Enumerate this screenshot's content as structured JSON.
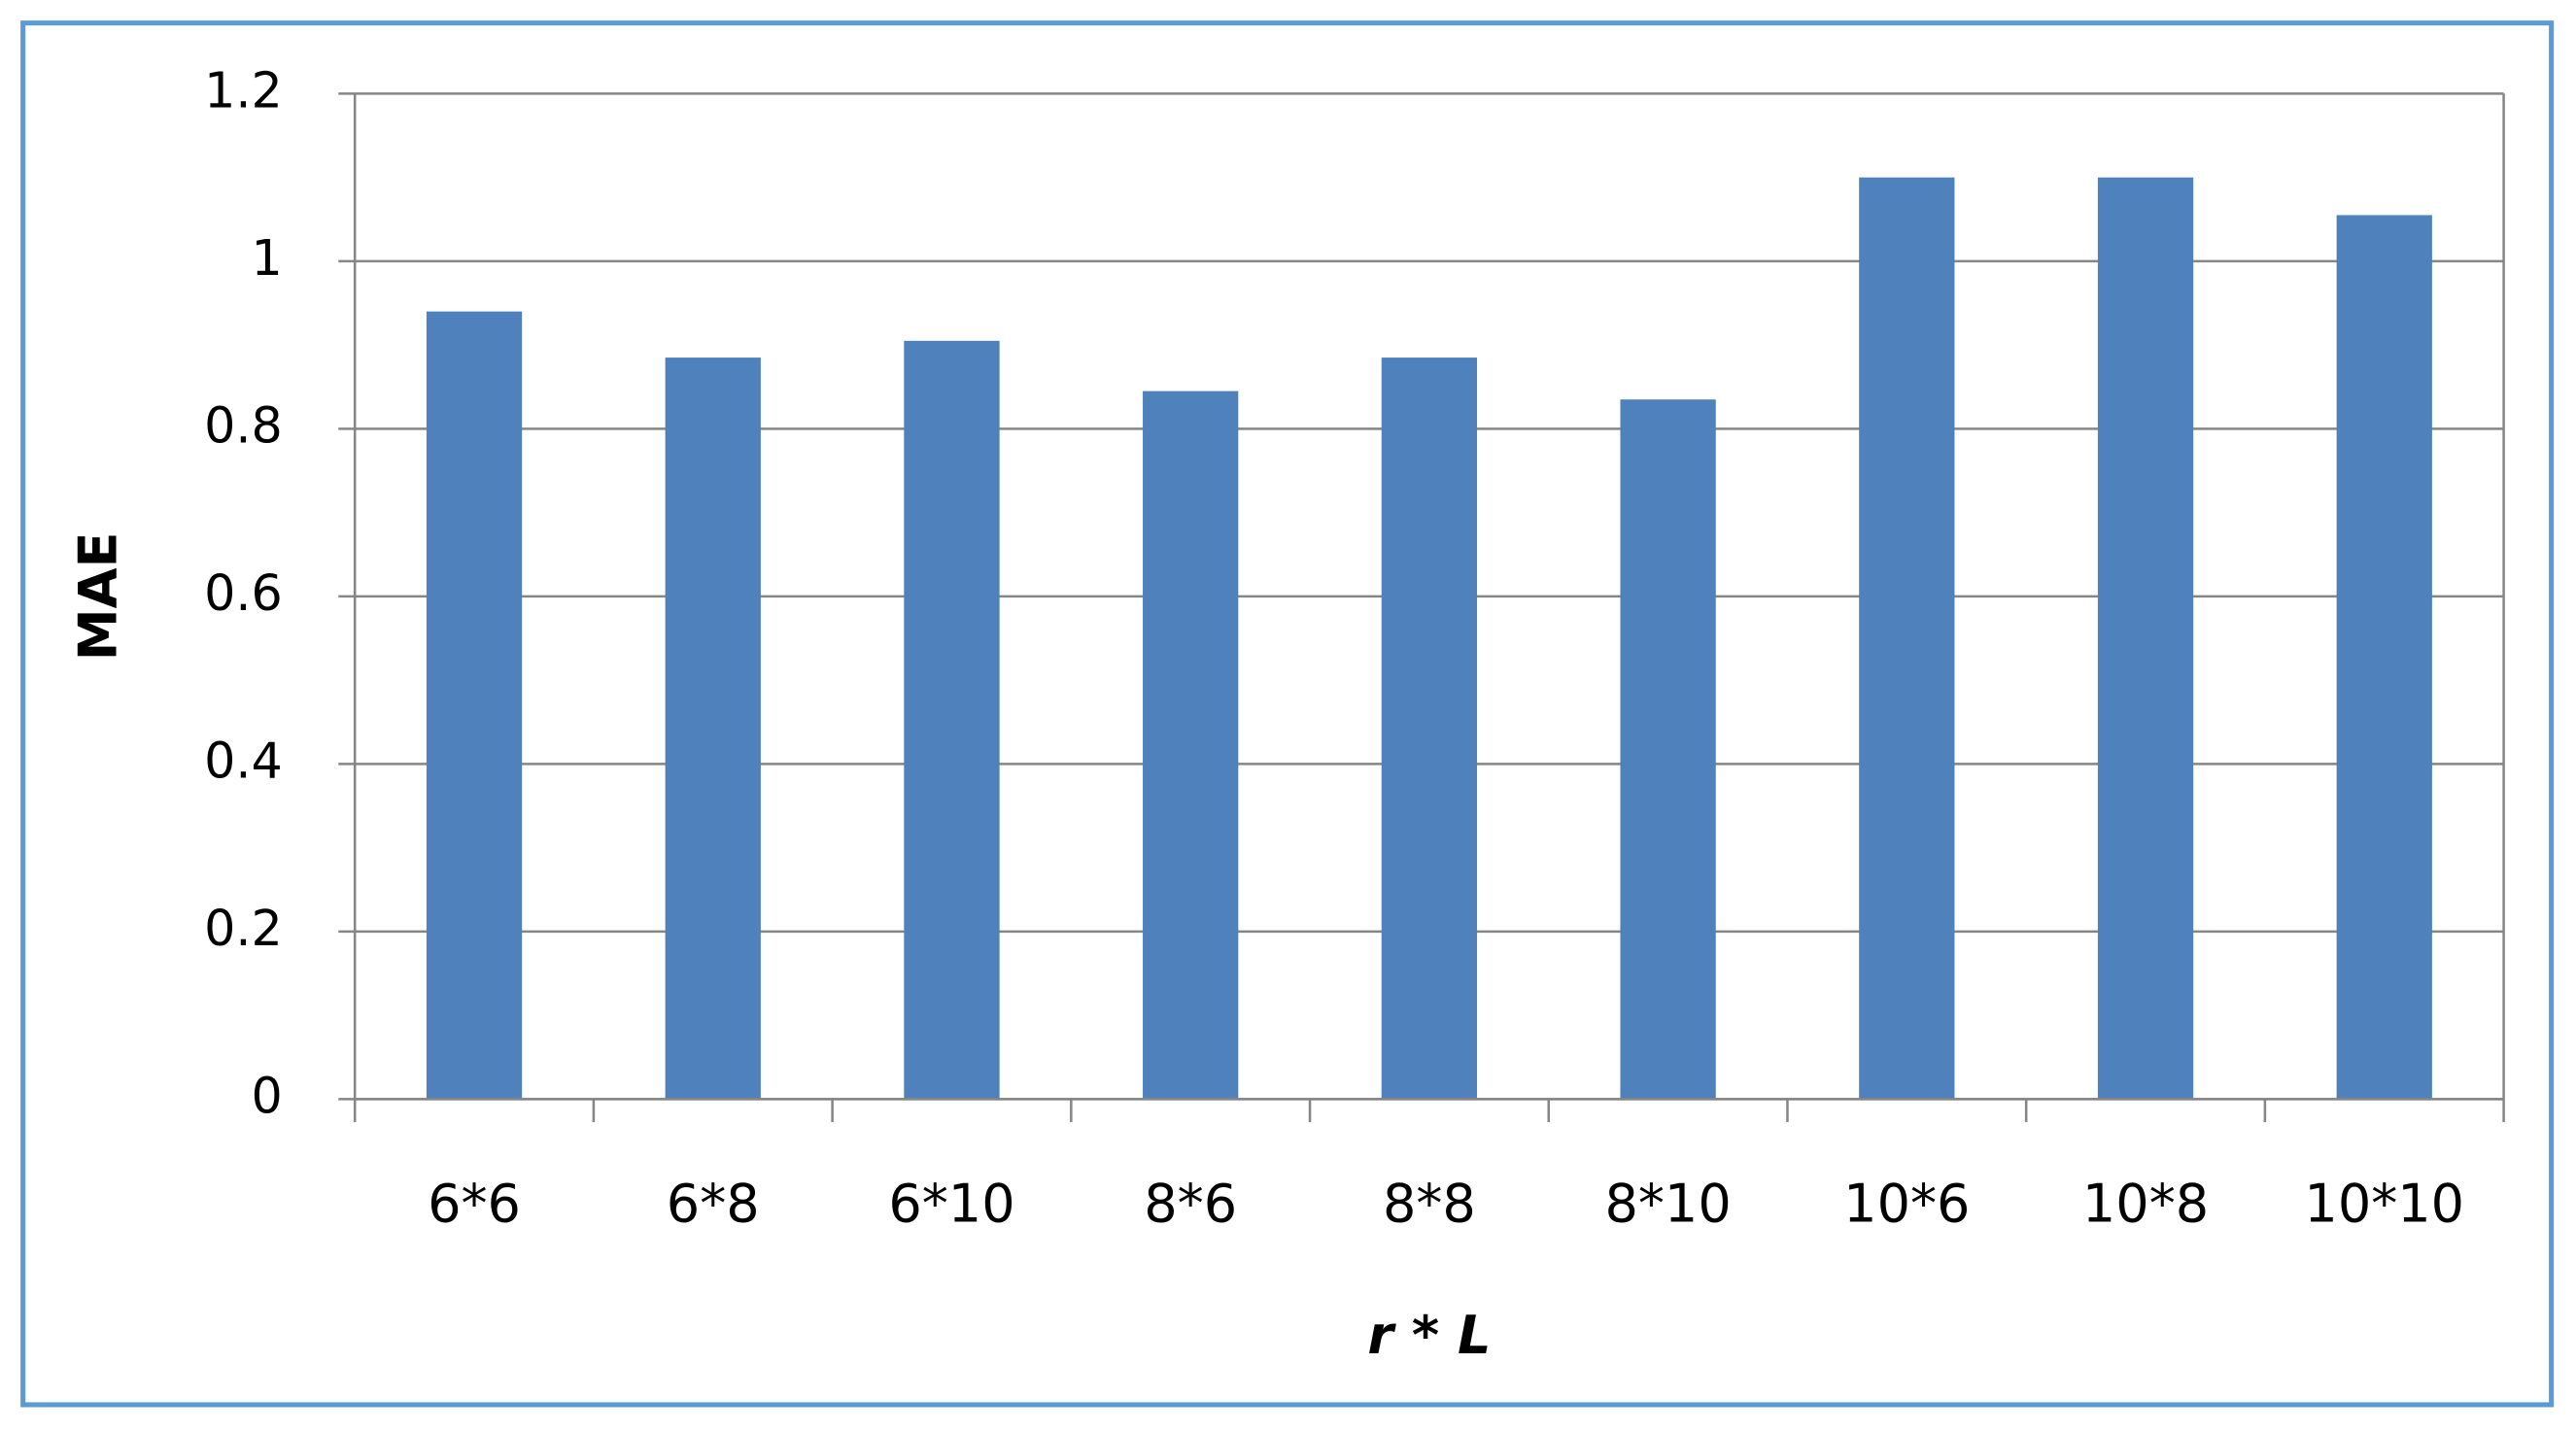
{
  "chart_data": {
    "type": "bar",
    "x_label": "r * L",
    "y_label": "MAE",
    "categories": [
      "6*6",
      "6*8",
      "6*10",
      "8*6",
      "8*8",
      "8*10",
      "10*6",
      "10*8",
      "10*10"
    ],
    "values": [
      0.94,
      0.885,
      0.905,
      0.845,
      0.885,
      0.835,
      1.1,
      1.1,
      1.055
    ],
    "color": "#4f81bd",
    "ylim": [
      0,
      1.2
    ],
    "yticks": [
      0,
      0.2,
      0.4,
      0.6,
      0.8,
      1,
      1.2
    ],
    "grid": true
  }
}
